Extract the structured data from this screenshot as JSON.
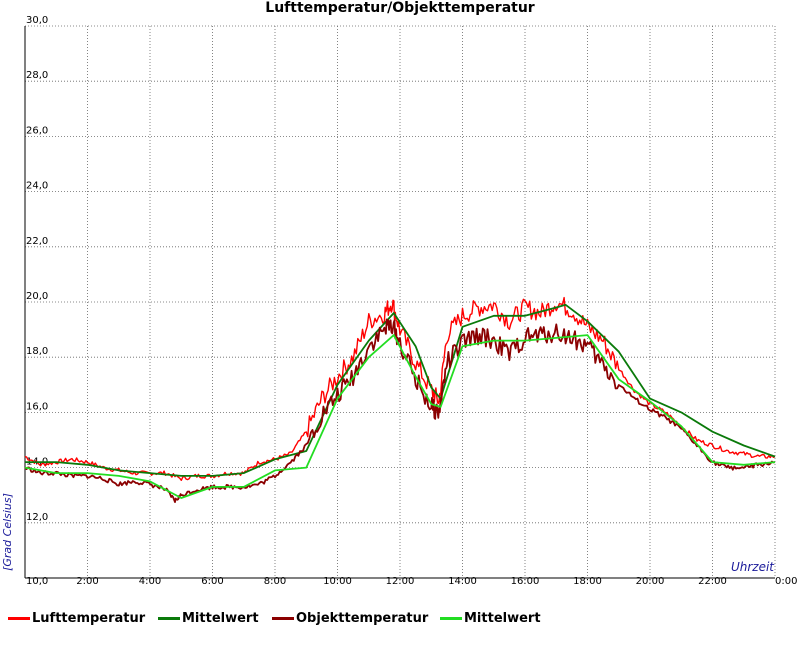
{
  "chart_data": {
    "type": "line",
    "title": "Lufttemperatur/Objekttemperatur",
    "ylabel": "[Grad Celsius]",
    "xlabel": "Uhrzeit",
    "ylim": [
      10,
      30
    ],
    "xlim": [
      0,
      24
    ],
    "y_ticks": [
      "10,0",
      "12,0",
      "14,0",
      "16,0",
      "18,0",
      "20,0",
      "22,0",
      "24,0",
      "26,0",
      "28,0",
      "30,0"
    ],
    "x_ticks": [
      "2:00",
      "4:00",
      "6:00",
      "8:00",
      "10:00",
      "12:00",
      "14:00",
      "16:00",
      "18:00",
      "20:00",
      "22:00",
      "0:00"
    ],
    "grid": true,
    "legend_position": "bottom",
    "series": [
      {
        "name": "Lufttemperatur",
        "color": "#ff0000",
        "x": [
          0,
          0.5,
          1,
          1.5,
          2,
          2.5,
          3,
          3.5,
          4,
          4.5,
          5,
          5.5,
          6,
          6.5,
          7,
          7.5,
          8,
          8.5,
          9,
          9.5,
          10,
          10.5,
          11,
          11.5,
          11.75,
          12,
          12.5,
          13,
          13.25,
          13.5,
          14,
          14.5,
          15,
          15.5,
          16,
          16.5,
          17,
          17.5,
          18,
          18.5,
          19,
          19.5,
          20,
          20.5,
          21,
          21.5,
          22,
          22.5,
          23,
          23.5,
          24
        ],
        "y": [
          14.4,
          14.1,
          14.2,
          14.3,
          14.2,
          14.0,
          13.9,
          13.8,
          13.8,
          13.8,
          13.6,
          13.7,
          13.7,
          13.8,
          13.8,
          14.2,
          14.3,
          14.5,
          15.3,
          16.5,
          17.3,
          18.0,
          19.3,
          19.6,
          20.0,
          19.0,
          17.8,
          16.8,
          16.4,
          18.8,
          19.5,
          19.8,
          19.9,
          19.3,
          19.8,
          19.6,
          20.0,
          19.7,
          19.1,
          18.6,
          17.6,
          16.8,
          16.3,
          16.0,
          15.5,
          15.0,
          14.8,
          14.6,
          14.5,
          14.4,
          14.4
        ]
      },
      {
        "name": "Mittelwert",
        "color": "#0a7a0a",
        "x": [
          0,
          1,
          2,
          3,
          4,
          5,
          6,
          7,
          8,
          9,
          10,
          11,
          11.8,
          12.5,
          13,
          13.3,
          14,
          15,
          16,
          17,
          17.3,
          18,
          19,
          20,
          21,
          22,
          23,
          24
        ],
        "y": [
          14.2,
          14.2,
          14.1,
          13.9,
          13.8,
          13.7,
          13.7,
          13.8,
          14.3,
          14.6,
          17.0,
          18.6,
          19.6,
          18.4,
          16.9,
          16.5,
          19.1,
          19.5,
          19.5,
          19.8,
          19.9,
          19.3,
          18.2,
          16.5,
          16.0,
          15.3,
          14.8,
          14.4
        ]
      },
      {
        "name": "Objekttemperatur",
        "color": "#8b0000",
        "x": [
          0,
          0.5,
          1,
          1.5,
          2,
          2.5,
          3,
          3.5,
          4,
          4.5,
          4.8,
          5,
          5.5,
          6,
          6.5,
          7,
          7.5,
          8,
          8.5,
          9,
          9.5,
          10,
          10.5,
          11,
          11.5,
          11.75,
          12,
          12.5,
          13,
          13.25,
          13.5,
          14,
          14.5,
          15,
          15.5,
          16,
          16.5,
          17,
          17.5,
          18,
          18.5,
          19,
          19.5,
          20,
          20.5,
          21,
          21.5,
          22,
          22.5,
          23,
          23.5,
          24
        ],
        "y": [
          14.0,
          13.8,
          13.8,
          13.7,
          13.7,
          13.6,
          13.4,
          13.5,
          13.4,
          13.2,
          12.8,
          13.0,
          13.2,
          13.3,
          13.3,
          13.3,
          13.4,
          13.7,
          14.2,
          14.8,
          15.9,
          16.6,
          17.3,
          18.4,
          19.0,
          19.2,
          18.5,
          17.2,
          16.2,
          16.0,
          17.8,
          18.5,
          18.8,
          18.6,
          18.1,
          18.7,
          18.8,
          18.9,
          18.7,
          18.4,
          17.7,
          17.0,
          16.5,
          16.1,
          15.8,
          15.4,
          14.8,
          14.2,
          14.0,
          14.0,
          14.1,
          14.2
        ]
      },
      {
        "name": "Mittelwert",
        "color": "#22dd22",
        "x": [
          0,
          1,
          2,
          3,
          4,
          5,
          6,
          7,
          8,
          9,
          10,
          11,
          11.8,
          12.5,
          13,
          13.3,
          14,
          15,
          16,
          17,
          18,
          19,
          20,
          21,
          22,
          23,
          24
        ],
        "y": [
          14.0,
          13.8,
          13.8,
          13.7,
          13.5,
          12.9,
          13.3,
          13.3,
          13.9,
          14.0,
          16.5,
          18.0,
          18.8,
          17.3,
          16.3,
          16.2,
          18.4,
          18.6,
          18.6,
          18.7,
          18.8,
          17.2,
          16.4,
          15.5,
          14.2,
          14.1,
          14.2
        ]
      }
    ]
  }
}
